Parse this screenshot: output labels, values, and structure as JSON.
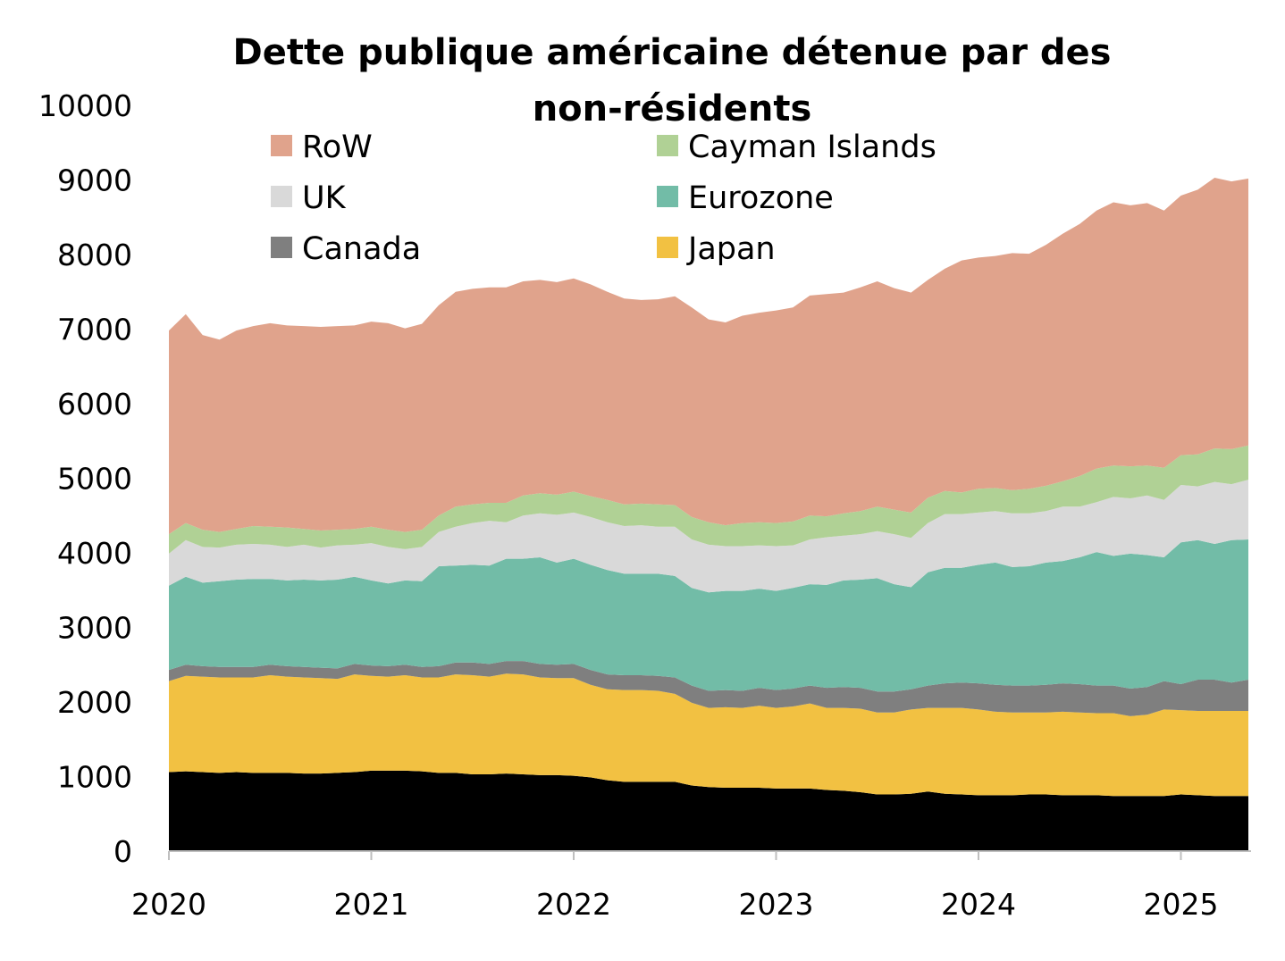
{
  "chart_data": {
    "type": "area",
    "stacked": true,
    "title": "Dette publique américaine détenue par des non-résidents",
    "title_lines": [
      "Dette publique américaine détenue par des",
      "non-résidents"
    ],
    "xlabel": "",
    "ylabel": "",
    "ylim": [
      0,
      10000
    ],
    "yticks": [
      "0",
      "1000",
      "2000",
      "3000",
      "4000",
      "5000",
      "6000",
      "7000",
      "8000",
      "9000",
      "10000"
    ],
    "xticks": [
      "2020",
      "2021",
      "2022",
      "2023",
      "2024",
      "2025"
    ],
    "grid": false,
    "legend_position": "top",
    "x": [
      "2020-01",
      "2020-02",
      "2020-03",
      "2020-04",
      "2020-05",
      "2020-06",
      "2020-07",
      "2020-08",
      "2020-09",
      "2020-10",
      "2020-11",
      "2020-12",
      "2021-01",
      "2021-02",
      "2021-03",
      "2021-04",
      "2021-05",
      "2021-06",
      "2021-07",
      "2021-08",
      "2021-09",
      "2021-10",
      "2021-11",
      "2021-12",
      "2022-01",
      "2022-02",
      "2022-03",
      "2022-04",
      "2022-05",
      "2022-06",
      "2022-07",
      "2022-08",
      "2022-09",
      "2022-10",
      "2022-11",
      "2022-12",
      "2023-01",
      "2023-02",
      "2023-03",
      "2023-04",
      "2023-05",
      "2023-06",
      "2023-07",
      "2023-08",
      "2023-09",
      "2023-10",
      "2023-11",
      "2023-12",
      "2024-01",
      "2024-02",
      "2024-03",
      "2024-04",
      "2024-05",
      "2024-06",
      "2024-07",
      "2024-08",
      "2024-09",
      "2024-10",
      "2024-11",
      "2024-12",
      "2025-01",
      "2025-02",
      "2025-03",
      "2025-04",
      "2025-05"
    ],
    "series": [
      {
        "color": "#000000",
        "values": [
          1060,
          1070,
          1060,
          1050,
          1060,
          1050,
          1050,
          1050,
          1040,
          1040,
          1050,
          1060,
          1080,
          1080,
          1080,
          1070,
          1050,
          1050,
          1030,
          1030,
          1040,
          1030,
          1020,
          1020,
          1010,
          990,
          950,
          930,
          930,
          930,
          930,
          880,
          860,
          850,
          850,
          850,
          840,
          840,
          840,
          820,
          810,
          790,
          760,
          760,
          770,
          800,
          770,
          760,
          750,
          750,
          750,
          760,
          760,
          750,
          750,
          750,
          740,
          740,
          740,
          740,
          760,
          750,
          740,
          740,
          740
        ]
      },
      {
        "name": "Japan",
        "color": "#F2C142",
        "values": [
          1220,
          1280,
          1280,
          1280,
          1270,
          1280,
          1310,
          1290,
          1290,
          1280,
          1260,
          1310,
          1270,
          1260,
          1280,
          1260,
          1280,
          1320,
          1330,
          1310,
          1340,
          1340,
          1310,
          1300,
          1310,
          1240,
          1220,
          1230,
          1230,
          1220,
          1180,
          1110,
          1060,
          1080,
          1070,
          1100,
          1080,
          1100,
          1140,
          1100,
          1110,
          1120,
          1100,
          1100,
          1130,
          1120,
          1150,
          1160,
          1150,
          1120,
          1110,
          1100,
          1100,
          1120,
          1110,
          1100,
          1110,
          1070,
          1090,
          1160,
          1130,
          1130,
          1140,
          1140,
          1140
        ]
      },
      {
        "name": "Canada",
        "color": "#7F7F7F",
        "values": [
          150,
          150,
          140,
          140,
          140,
          140,
          140,
          140,
          140,
          140,
          140,
          140,
          140,
          140,
          140,
          140,
          150,
          160,
          170,
          170,
          170,
          180,
          180,
          180,
          190,
          200,
          200,
          200,
          200,
          200,
          220,
          230,
          230,
          230,
          230,
          240,
          240,
          240,
          240,
          270,
          280,
          280,
          280,
          280,
          270,
          300,
          330,
          340,
          350,
          360,
          360,
          360,
          370,
          380,
          380,
          370,
          370,
          370,
          370,
          380,
          350,
          420,
          420,
          380,
          420
        ]
      },
      {
        "name": "Eurozone",
        "color": "#72BCA7",
        "values": [
          1130,
          1180,
          1120,
          1150,
          1170,
          1180,
          1150,
          1150,
          1170,
          1170,
          1190,
          1170,
          1140,
          1110,
          1130,
          1150,
          1340,
          1300,
          1310,
          1320,
          1370,
          1370,
          1430,
          1370,
          1410,
          1410,
          1400,
          1360,
          1360,
          1370,
          1360,
          1310,
          1320,
          1330,
          1340,
          1330,
          1330,
          1350,
          1360,
          1380,
          1430,
          1450,
          1520,
          1440,
          1370,
          1520,
          1550,
          1540,
          1590,
          1640,
          1590,
          1600,
          1640,
          1640,
          1700,
          1790,
          1740,
          1810,
          1770,
          1660,
          1900,
          1870,
          1820,
          1910,
          1880
        ]
      },
      {
        "name": "UK",
        "color": "#D9D9D9",
        "values": [
          430,
          490,
          480,
          450,
          470,
          470,
          460,
          450,
          470,
          440,
          460,
          430,
          500,
          490,
          420,
          460,
          460,
          520,
          560,
          600,
          490,
          580,
          590,
          640,
          620,
          640,
          640,
          640,
          650,
          630,
          660,
          650,
          640,
          600,
          600,
          580,
          600,
          570,
          600,
          640,
          600,
          610,
          630,
          670,
          660,
          660,
          720,
          720,
          700,
          690,
          720,
          710,
          690,
          730,
          680,
          670,
          790,
          740,
          800,
          770,
          770,
          720,
          830,
          750,
          800
        ]
      },
      {
        "name": "Cayman Islands",
        "color": "#B0D195",
        "values": [
          260,
          230,
          230,
          210,
          210,
          240,
          240,
          260,
          210,
          230,
          210,
          210,
          220,
          230,
          230,
          230,
          220,
          270,
          250,
          240,
          260,
          270,
          270,
          270,
          280,
          280,
          300,
          290,
          290,
          300,
          290,
          300,
          300,
          280,
          310,
          310,
          310,
          320,
          320,
          280,
          300,
          310,
          330,
          330,
          340,
          340,
          310,
          290,
          320,
          310,
          310,
          330,
          340,
          340,
          410,
          450,
          420,
          430,
          400,
          430,
          400,
          430,
          450,
          470,
          460
        ]
      },
      {
        "name": "RoW",
        "color": "#E0A38C",
        "values": [
          2730,
          2800,
          2610,
          2580,
          2660,
          2680,
          2730,
          2710,
          2720,
          2730,
          2730,
          2730,
          2750,
          2770,
          2730,
          2760,
          2820,
          2880,
          2890,
          2890,
          2890,
          2870,
          2860,
          2850,
          2860,
          2840,
          2790,
          2760,
          2730,
          2750,
          2800,
          2810,
          2720,
          2720,
          2780,
          2810,
          2850,
          2870,
          2950,
          2980,
          2960,
          3000,
          3020,
          2970,
          2950,
          2920,
          2980,
          3110,
          3100,
          3110,
          3180,
          3150,
          3230,
          3320,
          3380,
          3460,
          3530,
          3500,
          3520,
          3450,
          3480,
          3550,
          3630,
          3590,
          3580
        ]
      }
    ],
    "legend": [
      {
        "label": "RoW",
        "color": "#E0A38C"
      },
      {
        "label": "Cayman Islands",
        "color": "#B0D195"
      },
      {
        "label": "UK",
        "color": "#D9D9D9"
      },
      {
        "label": "Eurozone",
        "color": "#72BCA7"
      },
      {
        "label": "Canada",
        "color": "#7F7F7F"
      },
      {
        "label": "Japan",
        "color": "#F2C142"
      }
    ]
  }
}
